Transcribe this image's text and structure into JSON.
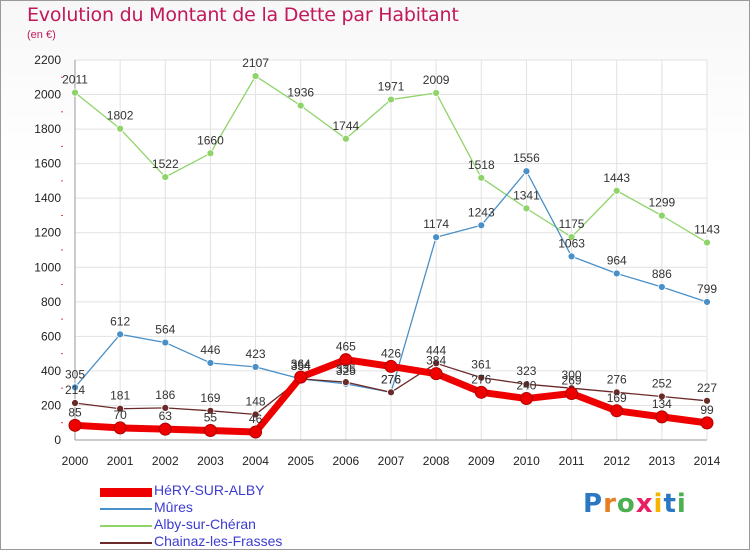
{
  "title": "Evolution du Montant de la Dette par Habitant",
  "unit": "(en €)",
  "brand": {
    "text": "Proxiti",
    "letter_colors": [
      "#2a78c4",
      "#e67e22",
      "#4caf50",
      "#e91e63",
      "#f4b400",
      "#2a78c4",
      "#4caf50"
    ]
  },
  "chart_data": {
    "type": "line",
    "x": [
      "2000",
      "2001",
      "2002",
      "2003",
      "2004",
      "2005",
      "2006",
      "2007",
      "2008",
      "2009",
      "2010",
      "2011",
      "2012",
      "2013",
      "2014"
    ],
    "ylim": [
      0,
      2200
    ],
    "yticks": [
      0,
      200,
      400,
      600,
      800,
      1000,
      1200,
      1400,
      1600,
      1800,
      2000,
      2200
    ],
    "grid": true,
    "legend_position": "bottom-left",
    "series": [
      {
        "name": "HéRY-SUR-ALBY",
        "color": "#ee0000",
        "values": [
          85,
          70,
          63,
          55,
          46,
          364,
          465,
          426,
          384,
          276,
          240,
          269,
          169,
          134,
          99
        ]
      },
      {
        "name": "Mûres",
        "color": "#4a90c8",
        "values": [
          305,
          612,
          564,
          446,
          423,
          354,
          325,
          276,
          1174,
          1243,
          1556,
          1063,
          964,
          886,
          799
        ]
      },
      {
        "name": "Alby-sur-Chéran",
        "color": "#8fd46b",
        "values": [
          2011,
          1802,
          1522,
          1660,
          2107,
          1936,
          1744,
          1971,
          2009,
          1518,
          1341,
          1175,
          1443,
          1299,
          1143
        ]
      },
      {
        "name": "Chainaz-les-Frasses",
        "color": "#6b2a2a",
        "values": [
          214,
          181,
          186,
          169,
          148,
          354,
          335,
          276,
          444,
          361,
          323,
          300,
          276,
          252,
          227
        ]
      }
    ]
  }
}
